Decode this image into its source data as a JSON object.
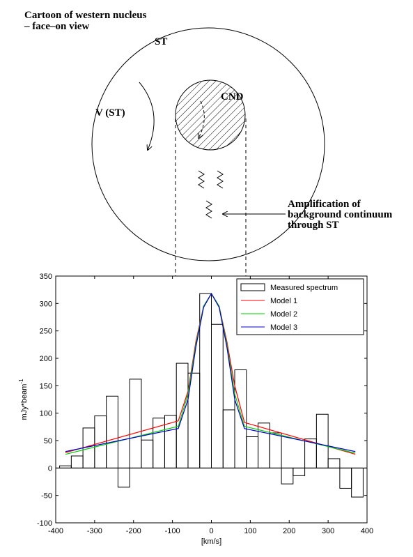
{
  "diagram": {
    "title": [
      "Cartoon of western nucleus",
      "– face–on view"
    ],
    "st_label": "ST",
    "v_label": "V (ST)",
    "cnd_label": "CND",
    "amplification": [
      "Amplification of",
      "background continuum",
      "through ST"
    ]
  },
  "chart_data": {
    "type": "histogram",
    "name": "Measured spectrum",
    "color": "#000000",
    "bins": [
      -390,
      -360,
      -330,
      -300,
      -270,
      -240,
      -210,
      -180,
      -150,
      -120,
      -90,
      -60,
      -30,
      0,
      30,
      60,
      90,
      120,
      150,
      180,
      210,
      240,
      270,
      300,
      330,
      360,
      390
    ],
    "values": [
      4,
      22,
      73,
      95,
      131,
      -35,
      162,
      51,
      91,
      96,
      191,
      173,
      318,
      262,
      106,
      179,
      57,
      82,
      64,
      -29,
      -14,
      53,
      98,
      17,
      -37,
      -53
    ],
    "series": [
      {
        "name": "Model 1",
        "type": "line",
        "color": "#ff0000",
        "x": [
          -375,
          -85,
          -60,
          -40,
          -20,
          0,
          20,
          40,
          60,
          85,
          370
        ],
        "values": [
          28,
          86,
          140,
          230,
          295,
          318,
          295,
          230,
          150,
          83,
          25
        ]
      },
      {
        "name": "Model 2",
        "type": "line",
        "color": "#00cc00",
        "x": [
          -375,
          -85,
          -60,
          -40,
          -20,
          0,
          20,
          40,
          60,
          85,
          370
        ],
        "values": [
          25,
          76,
          135,
          225,
          295,
          318,
          295,
          225,
          135,
          76,
          27
        ]
      },
      {
        "name": "Model 3",
        "type": "line",
        "color": "#0000cc",
        "x": [
          -375,
          -85,
          -60,
          -40,
          -20,
          0,
          20,
          40,
          60,
          85,
          370
        ],
        "values": [
          30,
          72,
          125,
          220,
          293,
          318,
          293,
          220,
          125,
          72,
          30
        ]
      }
    ],
    "xlabel": "[km/s]",
    "ylabel": {
      "text": "mJy*beam",
      "sup": "-1"
    },
    "xlim": [
      -400,
      400
    ],
    "xticks": [
      -400,
      -300,
      -200,
      -100,
      0,
      100,
      200,
      300,
      400
    ],
    "ylim": [
      -100,
      350
    ],
    "yticks": [
      -100,
      -50,
      0,
      50,
      100,
      150,
      200,
      250,
      300,
      350
    ],
    "legend": "top-right"
  }
}
